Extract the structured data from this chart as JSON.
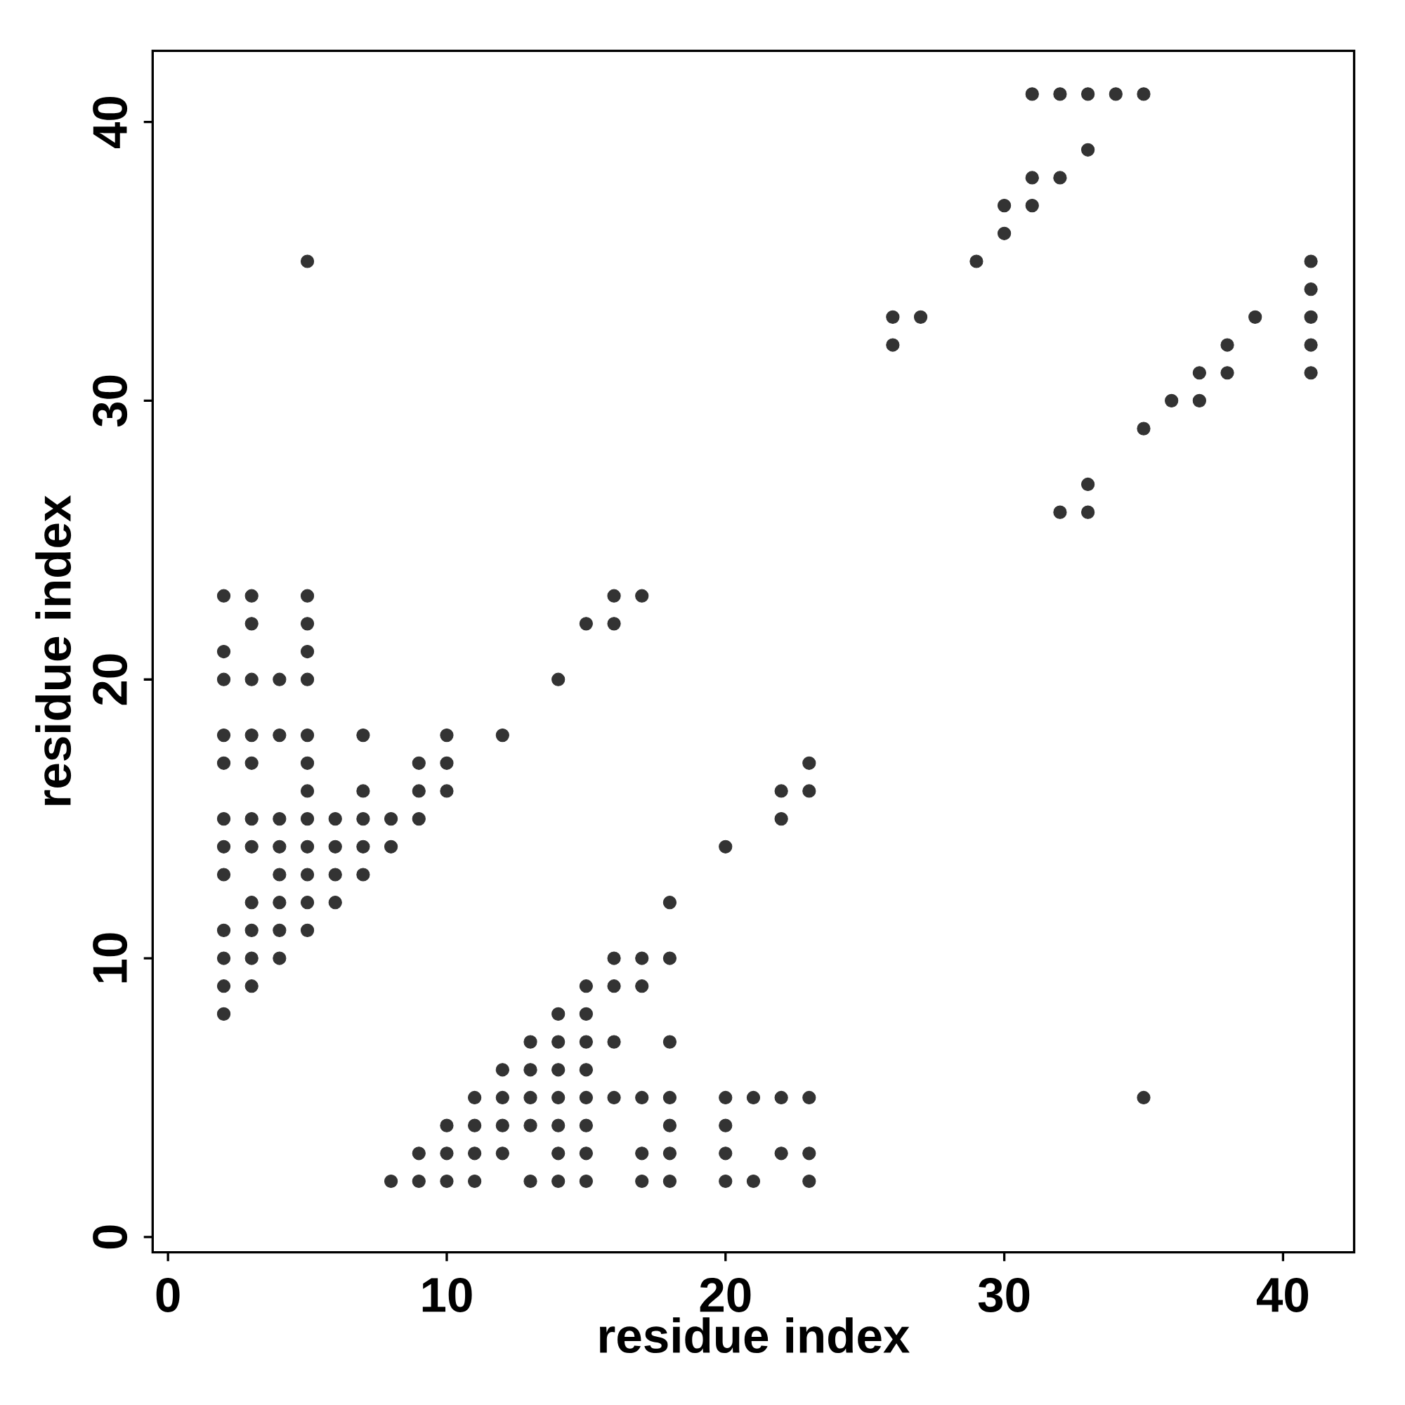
{
  "chart_data": {
    "type": "scatter",
    "xlabel": "residue index",
    "ylabel": "residue index",
    "xlim": [
      -0.55,
      42.55
    ],
    "ylim": [
      -0.55,
      42.55
    ],
    "xticks": [
      0,
      10,
      20,
      30,
      40
    ],
    "yticks": [
      0,
      10,
      20,
      30,
      40
    ],
    "marker": "circle",
    "color": "#333333",
    "x": [
      31,
      32,
      33,
      34,
      35,
      33,
      31,
      32,
      30,
      31,
      30,
      29,
      5,
      41,
      41,
      26,
      27,
      41,
      39,
      26,
      38,
      41,
      37,
      38,
      41,
      36,
      37,
      35,
      33,
      32,
      33,
      2,
      2,
      2,
      2,
      2,
      2,
      2,
      2,
      2,
      2,
      2,
      2,
      3,
      3,
      3,
      3,
      3,
      3,
      3,
      3,
      3,
      3,
      3,
      4,
      4,
      4,
      4,
      4,
      4,
      4,
      4,
      5,
      5,
      5,
      5,
      5,
      5,
      5,
      5,
      5,
      5,
      5,
      5,
      6,
      6,
      6,
      6,
      7,
      7,
      7,
      7,
      7,
      8,
      8,
      8,
      9,
      9,
      9,
      9,
      9,
      10,
      10,
      10,
      10,
      10,
      10,
      11,
      11,
      11,
      11,
      12,
      12,
      12,
      12,
      12,
      13,
      13,
      13,
      13,
      13,
      14,
      14,
      14,
      14,
      14,
      14,
      14,
      14,
      15,
      15,
      15,
      15,
      15,
      15,
      15,
      15,
      15,
      16,
      16,
      16,
      16,
      16,
      16,
      17,
      17,
      17,
      17,
      17,
      17,
      18,
      18,
      18,
      18,
      18,
      18,
      18,
      20,
      20,
      20,
      20,
      20,
      21,
      21,
      22,
      22,
      22,
      22,
      23,
      23,
      23,
      23,
      23,
      35
    ],
    "values": [
      41,
      41,
      41,
      41,
      41,
      39,
      38,
      38,
      37,
      37,
      36,
      35,
      35,
      35,
      34,
      33,
      33,
      33,
      33,
      32,
      32,
      32,
      31,
      31,
      31,
      30,
      30,
      29,
      27,
      26,
      26,
      23,
      21,
      20,
      18,
      17,
      15,
      14,
      13,
      11,
      10,
      9,
      8,
      23,
      22,
      20,
      18,
      17,
      15,
      14,
      12,
      11,
      10,
      9,
      20,
      18,
      15,
      14,
      13,
      12,
      11,
      10,
      23,
      22,
      21,
      20,
      18,
      17,
      16,
      15,
      14,
      13,
      12,
      11,
      15,
      14,
      13,
      12,
      18,
      16,
      15,
      14,
      13,
      15,
      14,
      2,
      17,
      16,
      15,
      3,
      2,
      18,
      17,
      16,
      4,
      3,
      2,
      5,
      4,
      3,
      2,
      18,
      6,
      5,
      4,
      3,
      7,
      6,
      5,
      4,
      2,
      20,
      8,
      7,
      6,
      5,
      4,
      3,
      2,
      22,
      9,
      8,
      7,
      6,
      5,
      4,
      3,
      2,
      23,
      22,
      10,
      9,
      7,
      5,
      23,
      10,
      9,
      5,
      3,
      2,
      12,
      10,
      7,
      5,
      4,
      3,
      2,
      14,
      5,
      4,
      3,
      2,
      5,
      2,
      16,
      15,
      5,
      3,
      17,
      16,
      5,
      3,
      2,
      5
    ]
  }
}
